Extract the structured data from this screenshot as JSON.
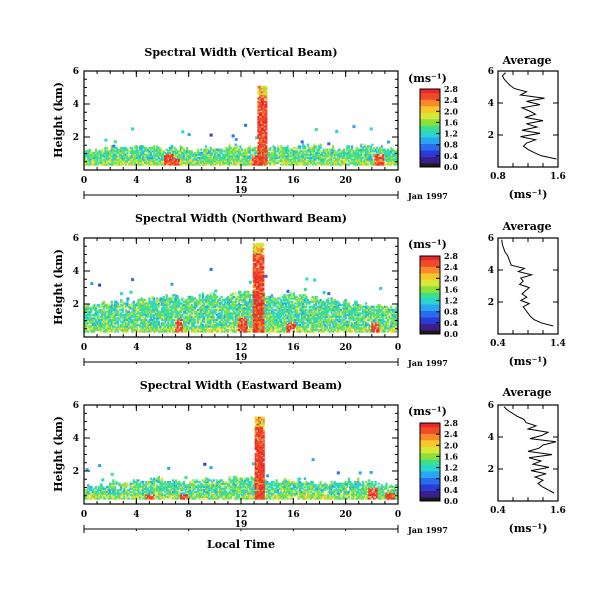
{
  "figure": {
    "x_axis_label": "Local Time",
    "date_label": "Jan 1997",
    "day_label": "19",
    "colorbar_unit": "(ms⁻¹)",
    "profile_unit": "(ms⁻¹)"
  },
  "colors": {
    "colormap": [
      "#1a1a1a",
      "#3a1e8c",
      "#2b3bd6",
      "#2a6cf0",
      "#2aa6f0",
      "#2ad4d0",
      "#3ce08a",
      "#8ce03a",
      "#d8e83a",
      "#f8c82a",
      "#f88a2a",
      "#f04a2a",
      "#e8282a"
    ]
  },
  "chart_data": [
    {
      "type": "heatmap",
      "title": "Spectral Width (Vertical Beam)",
      "ylabel": "Height (km)",
      "x_ticks": [
        "0",
        "4",
        "8",
        "12",
        "16",
        "20",
        "0"
      ],
      "y_ticks": [
        "2",
        "4",
        "6"
      ],
      "xlim": [
        0,
        24
      ],
      "ylim": [
        0,
        6
      ],
      "colorbar": {
        "ticks": [
          "0.0",
          "0.4",
          "0.8",
          "1.2",
          "1.6",
          "2.0",
          "2.4",
          "2.8"
        ],
        "range": [
          0.0,
          2.8
        ]
      },
      "field": {
        "base_height": 0.3,
        "layer_top": [
          1.1,
          1.2,
          1.3,
          1.3,
          1.4,
          1.4,
          1.3,
          1.3,
          1.2,
          1.3,
          1.3,
          1.4,
          1.3,
          1.2,
          1.3,
          1.3,
          1.4,
          1.4,
          1.3,
          1.2,
          1.3,
          1.4,
          1.3,
          1.3
        ],
        "intense_columns": [
          {
            "time": 13.6,
            "top": 5.0,
            "width": 0.7
          }
        ],
        "hot_spots": [
          {
            "time": 6.4,
            "height": 0.9
          },
          {
            "time": 6.9,
            "height": 0.7
          },
          {
            "time": 13.1,
            "height": 0.8
          },
          {
            "time": 22.5,
            "height": 0.9
          }
        ],
        "density": 0.85
      },
      "profile": {
        "title": "Average",
        "x_ticks": [
          "0.8",
          "1.6"
        ],
        "xlim": [
          0.8,
          1.6
        ],
        "y_ticks": [
          "2",
          "4",
          "6"
        ],
        "ylim": [
          0,
          6
        ],
        "heights": [
          0.5,
          0.7,
          0.9,
          1.1,
          1.3,
          1.5,
          1.7,
          1.9,
          2.1,
          2.3,
          2.5,
          2.7,
          2.9,
          3.1,
          3.3,
          3.5,
          3.7,
          3.9,
          4.1,
          4.3,
          4.5,
          4.7,
          4.9,
          5.1,
          5.3,
          5.5,
          5.7,
          5.9
        ],
        "values": [
          1.58,
          1.38,
          1.28,
          1.2,
          1.14,
          1.18,
          1.3,
          1.1,
          1.36,
          1.12,
          1.32,
          1.18,
          1.4,
          1.16,
          1.3,
          1.22,
          1.12,
          1.36,
          1.18,
          1.42,
          1.1,
          1.18,
          1.02,
          0.96,
          0.92,
          0.88,
          0.86,
          0.9
        ]
      }
    },
    {
      "type": "heatmap",
      "title": "Spectral Width (Northward Beam)",
      "ylabel": "Height (km)",
      "x_ticks": [
        "0",
        "4",
        "8",
        "12",
        "16",
        "20",
        "0"
      ],
      "y_ticks": [
        "2",
        "4",
        "6"
      ],
      "xlim": [
        0,
        24
      ],
      "ylim": [
        0,
        6
      ],
      "colorbar": {
        "ticks": [
          "0.0",
          "0.4",
          "0.8",
          "1.2",
          "1.6",
          "2.0",
          "2.4",
          "2.8"
        ],
        "range": [
          0.0,
          2.8
        ]
      },
      "field": {
        "base_height": 0.3,
        "layer_top": [
          1.8,
          2.0,
          2.1,
          2.1,
          2.2,
          2.3,
          2.4,
          2.3,
          2.4,
          2.5,
          2.4,
          2.6,
          2.6,
          2.5,
          2.4,
          2.6,
          2.5,
          2.3,
          2.2,
          2.1,
          2.0,
          1.9,
          1.9,
          1.8
        ],
        "intense_columns": [
          {
            "time": 13.3,
            "top": 5.6,
            "width": 0.8
          }
        ],
        "hot_spots": [
          {
            "time": 7.2,
            "height": 1.0
          },
          {
            "time": 12.1,
            "height": 1.2
          },
          {
            "time": 15.8,
            "height": 0.8
          },
          {
            "time": 22.2,
            "height": 0.8
          }
        ],
        "density": 0.8
      },
      "profile": {
        "title": "Average",
        "x_ticks": [
          "0.4",
          "1.4"
        ],
        "xlim": [
          0.4,
          1.4
        ],
        "y_ticks": [
          "2",
          "4",
          "6"
        ],
        "ylim": [
          0,
          6
        ],
        "heights": [
          0.5,
          0.7,
          0.9,
          1.1,
          1.3,
          1.5,
          1.7,
          1.9,
          2.1,
          2.3,
          2.5,
          2.7,
          2.9,
          3.1,
          3.3,
          3.5,
          3.7,
          3.9,
          4.1,
          4.3,
          4.5,
          4.7,
          4.9,
          5.1,
          5.3,
          5.5,
          5.7,
          5.9
        ],
        "values": [
          1.32,
          1.12,
          1.0,
          0.94,
          0.9,
          0.86,
          0.82,
          0.92,
          0.78,
          0.88,
          0.8,
          0.86,
          0.92,
          0.76,
          0.82,
          0.78,
          0.96,
          0.74,
          0.84,
          0.62,
          0.6,
          0.58,
          0.56,
          0.52,
          0.5,
          0.48,
          0.47,
          0.46
        ]
      }
    },
    {
      "type": "heatmap",
      "title": "Spectral Width (Eastward Beam)",
      "ylabel": "Height (km)",
      "x_ticks": [
        "0",
        "4",
        "8",
        "12",
        "16",
        "20",
        "0"
      ],
      "y_ticks": [
        "2",
        "4",
        "6"
      ],
      "xlim": [
        0,
        24
      ],
      "ylim": [
        0,
        6
      ],
      "colorbar": {
        "ticks": [
          "0.0",
          "0.4",
          "0.8",
          "1.2",
          "1.6",
          "2.0",
          "2.4",
          "2.8"
        ],
        "range": [
          0.0,
          2.8
        ]
      },
      "field": {
        "base_height": 0.3,
        "layer_top": [
          1.0,
          1.1,
          1.3,
          1.3,
          1.4,
          1.5,
          1.4,
          1.3,
          1.4,
          1.5,
          1.4,
          1.6,
          1.5,
          1.4,
          1.3,
          1.5,
          1.4,
          1.3,
          1.2,
          1.3,
          1.4,
          1.3,
          1.2,
          1.1
        ],
        "intense_columns": [
          {
            "time": 13.4,
            "top": 5.2,
            "width": 0.7
          }
        ],
        "hot_spots": [
          {
            "time": 5.0,
            "height": 0.6
          },
          {
            "time": 7.6,
            "height": 0.6
          },
          {
            "time": 22.0,
            "height": 0.9
          },
          {
            "time": 23.3,
            "height": 0.7
          }
        ],
        "density": 0.8
      },
      "profile": {
        "title": "Average",
        "x_ticks": [
          "0.4",
          "1.6"
        ],
        "xlim": [
          0.4,
          1.6
        ],
        "y_ticks": [
          "2",
          "4",
          "6"
        ],
        "ylim": [
          0,
          6
        ],
        "heights": [
          0.5,
          0.7,
          0.9,
          1.1,
          1.3,
          1.5,
          1.7,
          1.9,
          2.1,
          2.3,
          2.5,
          2.7,
          2.9,
          3.1,
          3.3,
          3.5,
          3.7,
          3.9,
          4.1,
          4.3,
          4.5,
          4.7,
          4.9,
          5.1,
          5.3,
          5.5,
          5.7,
          5.9
        ],
        "values": [
          1.52,
          1.4,
          1.28,
          1.2,
          1.3,
          1.14,
          1.36,
          1.06,
          1.42,
          1.1,
          1.26,
          1.02,
          1.48,
          1.0,
          1.22,
          1.3,
          1.56,
          1.04,
          1.28,
          1.4,
          1.0,
          1.16,
          0.96,
          0.92,
          0.78,
          0.68,
          0.58,
          0.52
        ]
      }
    }
  ]
}
